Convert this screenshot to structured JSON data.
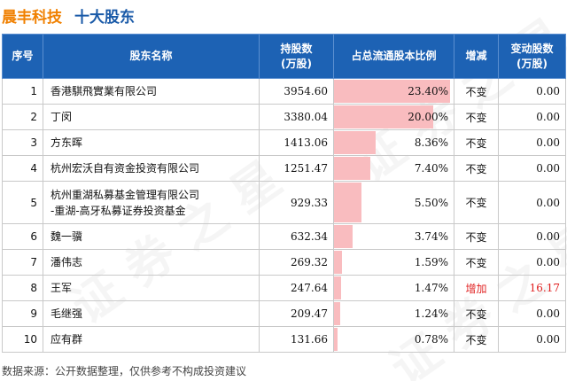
{
  "header": {
    "company": "晨丰科技",
    "section": "十大股东"
  },
  "table": {
    "columns": {
      "rank": "序号",
      "name": "股东名称",
      "shares_line1": "持股数",
      "shares_line2": "(万股)",
      "ratio": "占总流通股本比例",
      "change": "增减",
      "delta_line1": "变动股数",
      "delta_line2": "(万股)"
    },
    "rows": [
      {
        "rank": "1",
        "name": "香港騏飛實業有限公司",
        "name2": "",
        "shares": "3954.60",
        "ratio": "23.40%",
        "ratio_value": 23.4,
        "change": "不变",
        "delta": "0.00"
      },
      {
        "rank": "2",
        "name": "丁闵",
        "name2": "",
        "shares": "3380.04",
        "ratio": "20.00%",
        "ratio_value": 20.0,
        "change": "不变",
        "delta": "0.00"
      },
      {
        "rank": "3",
        "name": "方东晖",
        "name2": "",
        "shares": "1413.06",
        "ratio": "8.36%",
        "ratio_value": 8.36,
        "change": "不变",
        "delta": "0.00"
      },
      {
        "rank": "4",
        "name": "杭州宏沃自有资金投资有限公司",
        "name2": "",
        "shares": "1251.47",
        "ratio": "7.40%",
        "ratio_value": 7.4,
        "change": "不变",
        "delta": "0.00"
      },
      {
        "rank": "5",
        "name": "杭州重湖私募基金管理有限公司",
        "name2": "-重湖-高牙私募证券投资基金",
        "shares": "929.33",
        "ratio": "5.50%",
        "ratio_value": 5.5,
        "change": "不变",
        "delta": "0.00"
      },
      {
        "rank": "6",
        "name": "魏一骥",
        "name2": "",
        "shares": "632.34",
        "ratio": "3.74%",
        "ratio_value": 3.74,
        "change": "不变",
        "delta": "0.00"
      },
      {
        "rank": "7",
        "name": "潘伟志",
        "name2": "",
        "shares": "269.32",
        "ratio": "1.59%",
        "ratio_value": 1.59,
        "change": "不变",
        "delta": "0.00"
      },
      {
        "rank": "8",
        "name": "王军",
        "name2": "",
        "shares": "247.64",
        "ratio": "1.47%",
        "ratio_value": 1.47,
        "change": "增加",
        "delta": "16.17",
        "highlight": "#e02020"
      },
      {
        "rank": "9",
        "name": "毛继强",
        "name2": "",
        "shares": "209.47",
        "ratio": "1.24%",
        "ratio_value": 1.24,
        "change": "不变",
        "delta": "0.00"
      },
      {
        "rank": "10",
        "name": "应有群",
        "name2": "",
        "shares": "131.66",
        "ratio": "0.78%",
        "ratio_value": 0.78,
        "change": "不变",
        "delta": "0.00"
      }
    ]
  },
  "footer": "数据来源：公开数据整理，仅供参考不构成投资建议",
  "colors": {
    "header_bg": "#1d62b4",
    "bar": "#f9bcbf",
    "company_title": "#f08000",
    "section_title": "#1a5aa8",
    "increase_text": "#e02020"
  }
}
